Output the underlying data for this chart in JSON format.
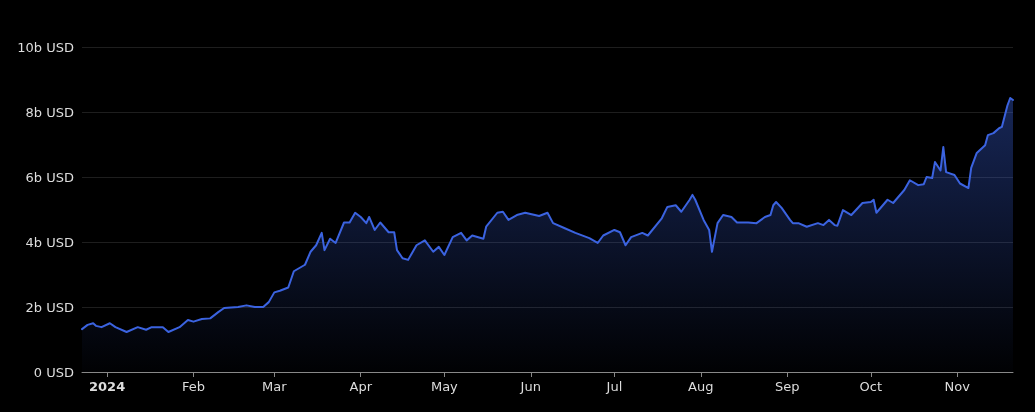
{
  "chart_data": {
    "type": "area",
    "x": [
      "2023-12-23",
      "2023-12-25",
      "2023-12-27",
      "2023-12-28",
      "2023-12-30",
      "2024-01-02",
      "2024-01-04",
      "2024-01-08",
      "2024-01-12",
      "2024-01-15",
      "2024-01-17",
      "2024-01-21",
      "2024-01-23",
      "2024-01-27",
      "2024-01-30",
      "2024-02-01",
      "2024-02-04",
      "2024-02-07",
      "2024-02-10",
      "2024-02-12",
      "2024-02-17",
      "2024-02-20",
      "2024-02-23",
      "2024-02-26",
      "2024-02-28",
      "2024-03-01",
      "2024-03-03",
      "2024-03-06",
      "2024-03-08",
      "2024-03-12",
      "2024-03-14",
      "2024-03-16",
      "2024-03-18",
      "2024-03-19",
      "2024-03-21",
      "2024-03-23",
      "2024-03-26",
      "2024-03-28",
      "2024-03-30",
      "2024-04-01",
      "2024-04-03",
      "2024-04-04",
      "2024-04-06",
      "2024-04-08",
      "2024-04-11",
      "2024-04-13",
      "2024-04-14",
      "2024-04-16",
      "2024-04-18",
      "2024-04-21",
      "2024-04-24",
      "2024-04-27",
      "2024-04-29",
      "2024-05-01",
      "2024-05-04",
      "2024-05-07",
      "2024-05-09",
      "2024-05-11",
      "2024-05-15",
      "2024-05-16",
      "2024-05-20",
      "2024-05-22",
      "2024-05-24",
      "2024-05-27",
      "2024-05-30",
      "2024-06-04",
      "2024-06-07",
      "2024-06-09",
      "2024-06-13",
      "2024-06-17",
      "2024-06-22",
      "2024-06-25",
      "2024-06-27",
      "2024-07-01",
      "2024-07-03",
      "2024-07-05",
      "2024-07-07",
      "2024-07-11",
      "2024-07-13",
      "2024-07-18",
      "2024-07-20",
      "2024-07-23",
      "2024-07-25",
      "2024-07-28",
      "2024-07-29",
      "2024-07-30",
      "2024-08-02",
      "2024-08-04",
      "2024-08-05",
      "2024-08-07",
      "2024-08-09",
      "2024-08-12",
      "2024-08-14",
      "2024-08-18",
      "2024-08-21",
      "2024-08-24",
      "2024-08-26",
      "2024-08-27",
      "2024-08-28",
      "2024-08-30",
      "2024-09-02",
      "2024-09-03",
      "2024-09-05",
      "2024-09-08",
      "2024-09-12",
      "2024-09-14",
      "2024-09-16",
      "2024-09-18",
      "2024-09-19",
      "2024-09-21",
      "2024-09-24",
      "2024-09-28",
      "2024-10-01",
      "2024-10-02",
      "2024-10-03",
      "2024-10-07",
      "2024-10-09",
      "2024-10-13",
      "2024-10-15",
      "2024-10-18",
      "2024-10-20",
      "2024-10-21",
      "2024-10-23",
      "2024-10-24",
      "2024-10-26",
      "2024-10-27",
      "2024-10-28",
      "2024-10-31",
      "2024-11-02",
      "2024-11-05",
      "2024-11-06",
      "2024-11-08",
      "2024-11-11",
      "2024-11-12",
      "2024-11-14",
      "2024-11-16",
      "2024-11-17",
      "2024-11-19",
      "2024-11-20",
      "2024-11-21"
    ],
    "values": [
      1.32,
      1.45,
      1.5,
      1.42,
      1.38,
      1.5,
      1.38,
      1.23,
      1.38,
      1.3,
      1.38,
      1.38,
      1.23,
      1.38,
      1.6,
      1.55,
      1.63,
      1.65,
      1.85,
      1.97,
      2.0,
      2.05,
      2.0,
      2.0,
      2.15,
      2.45,
      2.5,
      2.6,
      3.1,
      3.3,
      3.7,
      3.9,
      4.28,
      3.75,
      4.1,
      3.97,
      4.6,
      4.6,
      4.9,
      4.77,
      4.58,
      4.77,
      4.37,
      4.6,
      4.3,
      4.3,
      3.75,
      3.5,
      3.45,
      3.9,
      4.05,
      3.7,
      3.85,
      3.6,
      4.15,
      4.28,
      4.05,
      4.2,
      4.1,
      4.47,
      4.9,
      4.93,
      4.68,
      4.83,
      4.9,
      4.8,
      4.9,
      4.58,
      4.43,
      4.28,
      4.12,
      3.97,
      4.2,
      4.37,
      4.3,
      3.9,
      4.15,
      4.28,
      4.2,
      4.73,
      5.08,
      5.13,
      4.93,
      5.3,
      5.45,
      5.3,
      4.68,
      4.37,
      3.7,
      4.58,
      4.83,
      4.77,
      4.6,
      4.6,
      4.58,
      4.77,
      4.83,
      5.13,
      5.23,
      5.05,
      4.68,
      4.58,
      4.58,
      4.47,
      4.58,
      4.52,
      4.68,
      4.52,
      4.5,
      4.98,
      4.83,
      5.2,
      5.23,
      5.3,
      4.9,
      5.3,
      5.2,
      5.6,
      5.9,
      5.75,
      5.78,
      6.0,
      5.97,
      6.46,
      6.2,
      6.92,
      6.15,
      6.06,
      5.8,
      5.66,
      6.28,
      6.74,
      6.98,
      7.29,
      7.35,
      7.5,
      7.54,
      8.2,
      8.43,
      8.37
    ],
    "color": "#3b63e0",
    "xlim": [
      "2023-12-23",
      "2024-11-21"
    ],
    "xticks": [
      {
        "value": "2024-01-01",
        "label": "2024"
      },
      {
        "value": "2024-02-01",
        "label": "Feb"
      },
      {
        "value": "2024-03-01",
        "label": "Mar"
      },
      {
        "value": "2024-04-01",
        "label": "Apr"
      },
      {
        "value": "2024-05-01",
        "label": "May"
      },
      {
        "value": "2024-06-01",
        "label": "Jun"
      },
      {
        "value": "2024-07-01",
        "label": "Jul"
      },
      {
        "value": "2024-08-01",
        "label": "Aug"
      },
      {
        "value": "2024-09-01",
        "label": "Sep"
      },
      {
        "value": "2024-10-01",
        "label": "Oct"
      },
      {
        "value": "2024-11-01",
        "label": "Nov"
      }
    ],
    "ylim": [
      0,
      10
    ],
    "yticks": [
      {
        "value": 0,
        "label": "0 USD"
      },
      {
        "value": 2,
        "label": "2b USD"
      },
      {
        "value": 4,
        "label": "4b USD"
      },
      {
        "value": 6,
        "label": "6b USD"
      },
      {
        "value": 8,
        "label": "8b USD"
      },
      {
        "value": 10,
        "label": "10b USD"
      }
    ],
    "grid": "y",
    "marker": "none",
    "line_style": "solid"
  }
}
